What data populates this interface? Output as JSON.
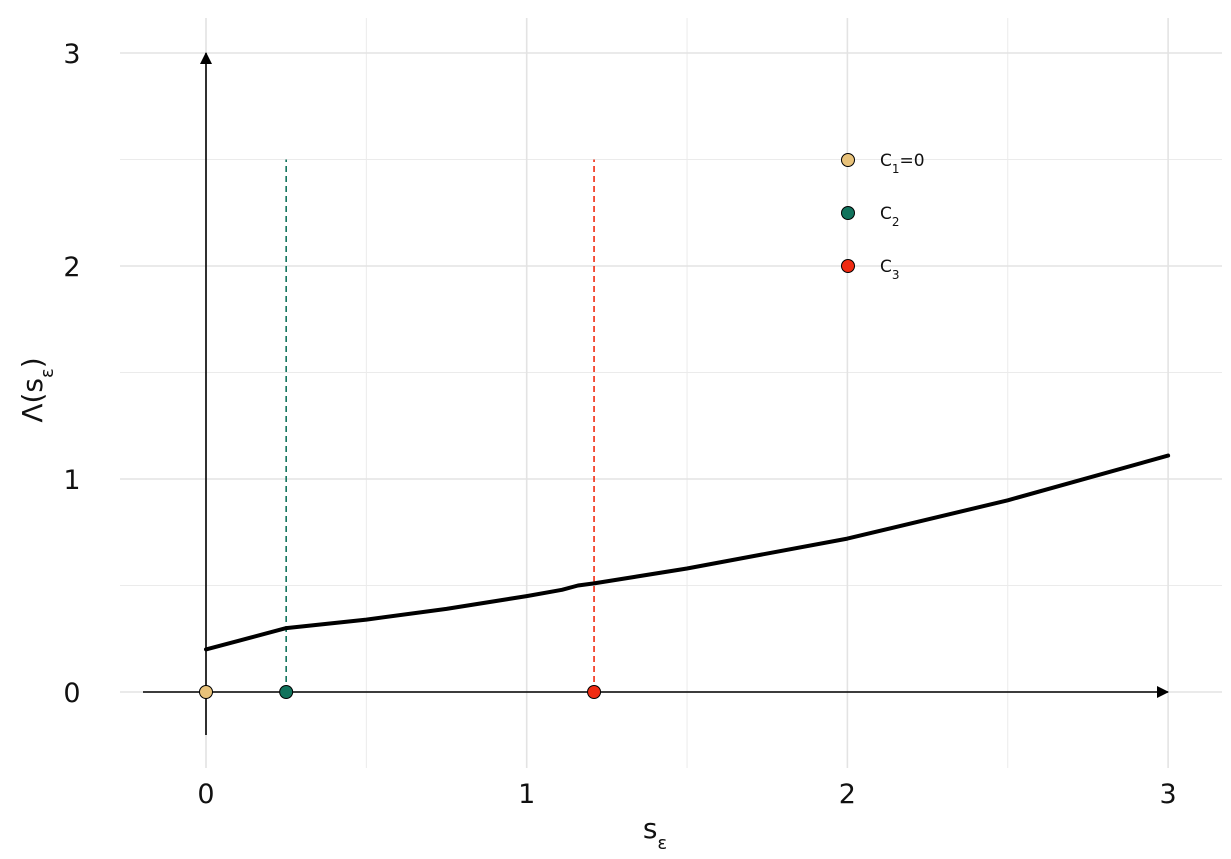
{
  "chart_data": {
    "type": "line",
    "xlabel": "sε",
    "ylabel": "Λ(sε)",
    "xlim": [
      -0.4,
      3.15
    ],
    "ylim": [
      -0.35,
      3.15
    ],
    "x_ticks": [
      0,
      1,
      2,
      3
    ],
    "y_ticks": [
      0,
      1,
      2,
      3
    ],
    "x_minor": [
      0.5,
      1.5,
      2.5
    ],
    "y_minor": [
      0.5,
      1.5,
      2.5
    ],
    "grid": true,
    "legend_position": "top-right",
    "curve": {
      "x": [
        0,
        0.1,
        0.25,
        0.5,
        0.75,
        1.0,
        1.11,
        1.16,
        1.21,
        1.5,
        2.0,
        2.5,
        3.0
      ],
      "y": [
        0.2,
        0.24,
        0.3,
        0.34,
        0.39,
        0.45,
        0.48,
        0.5,
        0.51,
        0.58,
        0.72,
        0.9,
        1.11
      ]
    },
    "series": [
      {
        "name": "C₁=0",
        "label_base": "C",
        "label_sub": "1",
        "label_suffix": "=0",
        "x": 0,
        "color": "#E8C27A",
        "dashed_line_top": null
      },
      {
        "name": "C₂",
        "label_base": "C",
        "label_sub": "2",
        "label_suffix": "",
        "x": 0.25,
        "color": "#11735C",
        "dashed_line_top": 2.5
      },
      {
        "name": "C₃",
        "label_base": "C",
        "label_sub": "3",
        "label_suffix": "",
        "x": 1.21,
        "color": "#F02B12",
        "dashed_line_top": 2.5
      }
    ]
  }
}
